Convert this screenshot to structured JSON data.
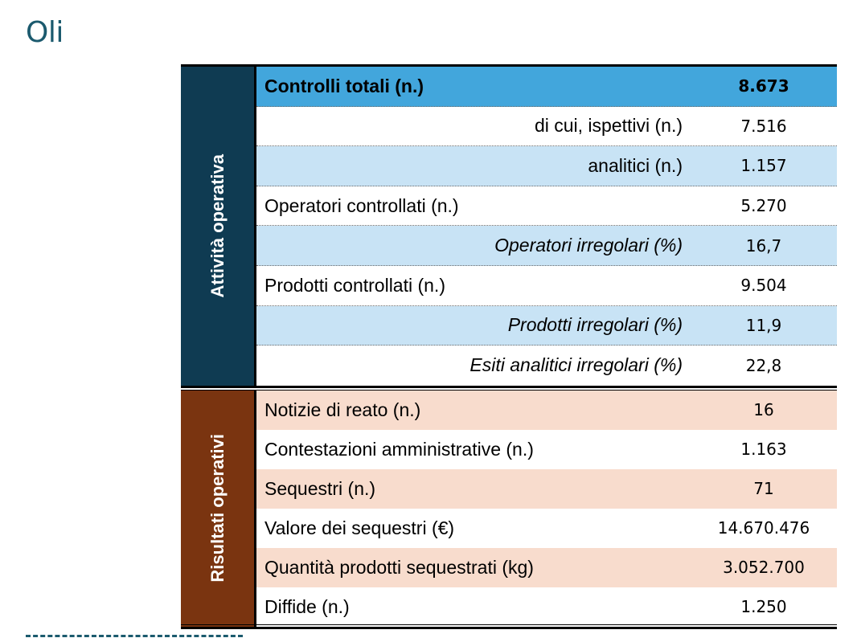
{
  "title": "Oli",
  "table": {
    "groups": [
      {
        "label": "Attività operativa",
        "rows": [
          {
            "label": "Controlli totali (n.)",
            "value": "8.673"
          },
          {
            "label": "di cui, ispettivi (n.)",
            "value": "7.516"
          },
          {
            "label": "analitici (n.)",
            "value": "1.157"
          },
          {
            "label": "Operatori controllati (n.)",
            "value": "5.270"
          },
          {
            "label": "Operatori irregolari (%)",
            "value": "16,7"
          },
          {
            "label": "Prodotti controllati (n.)",
            "value": "9.504"
          },
          {
            "label": "Prodotti irregolari (%)",
            "value": "11,9"
          },
          {
            "label": "Esiti analitici irregolari (%)",
            "value": "22,8"
          }
        ]
      },
      {
        "label": "Risultati operativi",
        "rows": [
          {
            "label": "Notizie di reato (n.)",
            "value": "16"
          },
          {
            "label": "Contestazioni amministrative (n.)",
            "value": "1.163"
          },
          {
            "label": "Sequestri (n.)",
            "value": "71"
          },
          {
            "label": "Valore dei sequestri (€)",
            "value": "14.670.476"
          },
          {
            "label": "Quantità prodotti sequestrati (kg)",
            "value": "3.052.700"
          },
          {
            "label": "Diffide (n.)",
            "value": "1.250"
          }
        ]
      }
    ]
  },
  "colors": {
    "title": "#1b5a6e",
    "attivita_band": "#0f3b52",
    "risultati_band": "#7a3410",
    "total_row": "#42a6dc",
    "blue_row": "#c8e3f5",
    "pink_row": "#f8dccd"
  }
}
